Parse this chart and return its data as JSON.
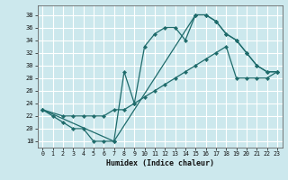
{
  "xlabel": "Humidex (Indice chaleur)",
  "bg_color": "#cce8ed",
  "line_color": "#1e6b6b",
  "grid_color": "#ffffff",
  "xlim": [
    -0.5,
    23.5
  ],
  "ylim": [
    17,
    39.5
  ],
  "xticks": [
    0,
    1,
    2,
    3,
    4,
    5,
    6,
    7,
    8,
    9,
    10,
    11,
    12,
    13,
    14,
    15,
    16,
    17,
    18,
    19,
    20,
    21,
    22,
    23
  ],
  "yticks": [
    18,
    20,
    22,
    24,
    26,
    28,
    30,
    32,
    34,
    36,
    38
  ],
  "line1_x": [
    0,
    1,
    2,
    3,
    4,
    5,
    6,
    7,
    8,
    9,
    10,
    11,
    12,
    13,
    14,
    15,
    16,
    17,
    18,
    19,
    20,
    21,
    22,
    23
  ],
  "line1_y": [
    23,
    22,
    21,
    20,
    20,
    18,
    18,
    18,
    29,
    24,
    33,
    35,
    36,
    36,
    34,
    38,
    38,
    37,
    35,
    34,
    32,
    30,
    29,
    29
  ],
  "line2_x": [
    0,
    2,
    3,
    4,
    5,
    6,
    7,
    8,
    9,
    10,
    11,
    12,
    13,
    14,
    15,
    16,
    17,
    18,
    19,
    20,
    21,
    22,
    23
  ],
  "line2_y": [
    23,
    22,
    22,
    22,
    22,
    22,
    23,
    23,
    24,
    25,
    26,
    27,
    28,
    29,
    30,
    31,
    32,
    33,
    28,
    28,
    28,
    28,
    29
  ],
  "line3_x": [
    0,
    7,
    15,
    16,
    17,
    18,
    19,
    20,
    21,
    22,
    23
  ],
  "line3_y": [
    23,
    18,
    38,
    38,
    37,
    35,
    34,
    32,
    30,
    29,
    29
  ]
}
